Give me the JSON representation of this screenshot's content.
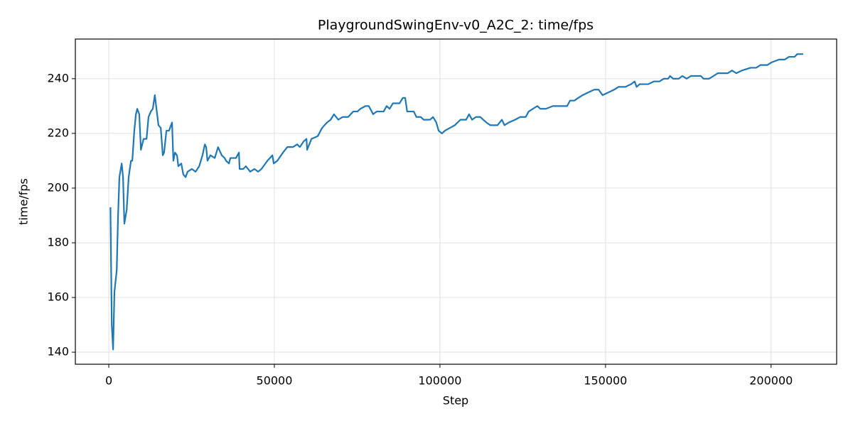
{
  "chart_data": {
    "type": "line",
    "title": "PlaygroundSwingEnv-v0_A2C_2: time/fps",
    "x_label": "Step",
    "y_label": "time/fps",
    "x": [
      500,
      900,
      1300,
      1700,
      2400,
      2800,
      3200,
      3900,
      4300,
      4700,
      5400,
      6000,
      6700,
      7100,
      7700,
      8200,
      8600,
      9200,
      9700,
      10500,
      11400,
      12000,
      12700,
      13300,
      13900,
      14400,
      15000,
      15700,
      16300,
      16700,
      17400,
      18200,
      19100,
      19500,
      20000,
      20600,
      21000,
      21900,
      22500,
      23200,
      23800,
      25100,
      26200,
      27300,
      28300,
      29000,
      29400,
      29800,
      30700,
      32000,
      33000,
      34100,
      35000,
      35400,
      36300,
      36700,
      38400,
      39300,
      39500,
      40600,
      41400,
      42700,
      44000,
      45100,
      46100,
      47900,
      49400,
      49800,
      50900,
      52600,
      53900,
      55600,
      56900,
      57700,
      58800,
      59700,
      59900,
      61200,
      63100,
      64400,
      65900,
      67000,
      68000,
      69300,
      70600,
      72300,
      73800,
      75100,
      76000,
      77500,
      78500,
      79400,
      79800,
      80900,
      83000,
      83900,
      84800,
      85800,
      87800,
      88800,
      89500,
      90100,
      92100,
      92900,
      94200,
      95100,
      97000,
      97900,
      98900,
      99600,
      100600,
      101500,
      103000,
      104500,
      106200,
      107900,
      108800,
      109700,
      110900,
      112200,
      113100,
      114000,
      115200,
      117400,
      118700,
      119500,
      120800,
      122700,
      124200,
      125900,
      126800,
      128100,
      129400,
      130300,
      132000,
      134100,
      136700,
      138400,
      139300,
      140600,
      141800,
      143100,
      144800,
      146600,
      147900,
      149100,
      150900,
      152600,
      153900,
      156000,
      157700,
      158800,
      159400,
      160300,
      162900,
      164600,
      166300,
      167600,
      168900,
      169500,
      170400,
      172100,
      173200,
      174500,
      175800,
      178800,
      179600,
      181300,
      182600,
      183900,
      186900,
      188200,
      189500,
      191200,
      193800,
      195500,
      196800,
      198900,
      200200,
      202400,
      204100,
      205400,
      207100,
      207900,
      209700
    ],
    "values": [
      193,
      150,
      141,
      162,
      170,
      190,
      204,
      209,
      204,
      187,
      192,
      204,
      210,
      210,
      221,
      227,
      229,
      227,
      214,
      218,
      218,
      226,
      228,
      229,
      234,
      229,
      223,
      222,
      212,
      213,
      221,
      221,
      224,
      210,
      213,
      212,
      208,
      209,
      205,
      204,
      206,
      207,
      206,
      208,
      212,
      216,
      215,
      210,
      212,
      211,
      215,
      212,
      211,
      210,
      209,
      211,
      211,
      213,
      207,
      207,
      208,
      206,
      207,
      206,
      207,
      210,
      212,
      209,
      210,
      213,
      215,
      215,
      216,
      215,
      217,
      218,
      214,
      218,
      219,
      222,
      224,
      225,
      227,
      225,
      226,
      226,
      228,
      228,
      229,
      230,
      230,
      228,
      227,
      228,
      228,
      230,
      229,
      231,
      231,
      233,
      233,
      228,
      228,
      226,
      226,
      225,
      225,
      226,
      224,
      221,
      220,
      221,
      222,
      223,
      225,
      225,
      227,
      225,
      226,
      226,
      225,
      224,
      223,
      223,
      225,
      223,
      224,
      225,
      226,
      226,
      228,
      229,
      230,
      229,
      229,
      230,
      230,
      230,
      232,
      232,
      233,
      234,
      235,
      236,
      236,
      234,
      235,
      236,
      237,
      237,
      238,
      239,
      237,
      238,
      238,
      239,
      239,
      240,
      240,
      241,
      240,
      240,
      241,
      240,
      241,
      241,
      240,
      240,
      241,
      242,
      242,
      243,
      242,
      243,
      244,
      244,
      245,
      245,
      246,
      247,
      247,
      248,
      248,
      249,
      249
    ],
    "color": "#1f77b4",
    "xlim": [
      -10100,
      219800
    ],
    "xticks": [
      0,
      50000,
      100000,
      150000,
      200000
    ],
    "ylim": [
      135.6,
      254.5
    ],
    "yticks": [
      140,
      160,
      180,
      200,
      220,
      240
    ],
    "grid": true
  }
}
